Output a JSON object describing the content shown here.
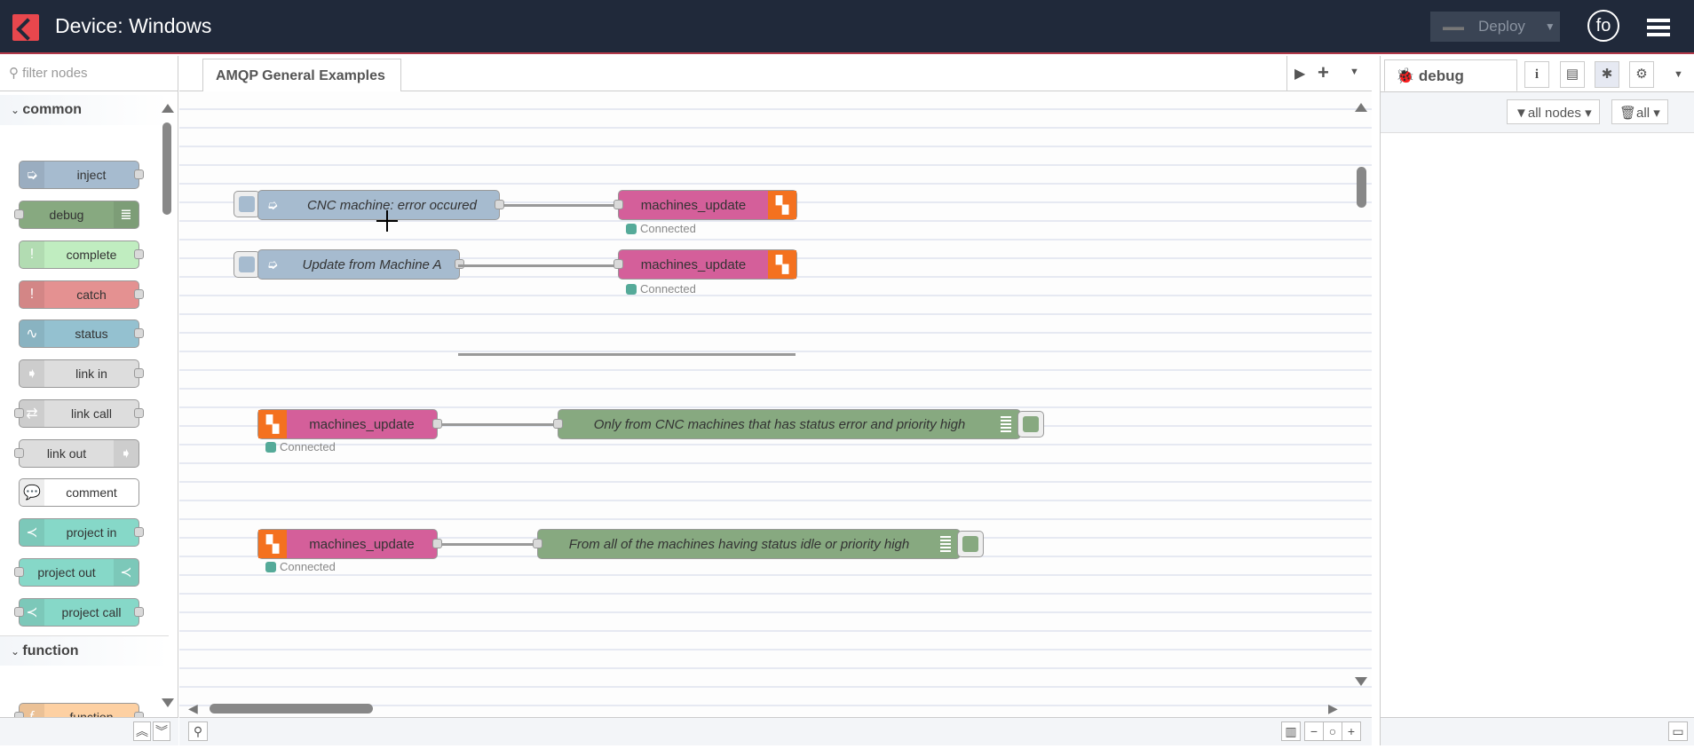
{
  "header": {
    "title": "Device: Windows",
    "deploy_label": "Deploy",
    "user_initials": "fo"
  },
  "palette": {
    "filter_placeholder": "filter nodes",
    "categories": [
      {
        "label": "common"
      },
      {
        "label": "function"
      }
    ],
    "nodes": [
      {
        "label": "inject",
        "color": "#a6bbcf",
        "icon": "arrow-right-icon"
      },
      {
        "label": "debug",
        "color": "#87a980",
        "icon": "list-icon"
      },
      {
        "label": "complete",
        "color": "#c0edc0",
        "icon": "exclamation-icon"
      },
      {
        "label": "catch",
        "color": "#e49191",
        "icon": "exclamation-icon"
      },
      {
        "label": "status",
        "color": "#94c1d0",
        "icon": "pulse-icon"
      },
      {
        "label": "link in",
        "color": "#dddddd",
        "icon": "link-in-icon"
      },
      {
        "label": "link call",
        "color": "#dddddd",
        "icon": "link-call-icon"
      },
      {
        "label": "link out",
        "color": "#dddddd",
        "icon": "link-out-icon"
      },
      {
        "label": "comment",
        "color": "#ffffff",
        "icon": "comment-icon"
      },
      {
        "label": "project in",
        "color": "#86d8c8",
        "icon": "project-icon"
      },
      {
        "label": "project out",
        "color": "#86d8c8",
        "icon": "project-icon"
      },
      {
        "label": "project call",
        "color": "#86d8c8",
        "icon": "project-icon"
      },
      {
        "label": "function",
        "color": "#fdd0a2",
        "icon": "function-icon"
      }
    ]
  },
  "workspace": {
    "tab_label": "AMQP General Examples",
    "flows": [
      {
        "inject": "CNC machine: error occured",
        "amqp_out": "machines_update",
        "status": "Connected"
      },
      {
        "inject": "Update from Machine A",
        "amqp_out": "machines_update",
        "status": "Connected"
      },
      {
        "amqp_in": "machines_update",
        "status": "Connected",
        "debug": "Only from CNC machines that has status error and priority high"
      },
      {
        "amqp_in": "machines_update",
        "status": "Connected",
        "debug": "From all of the machines having status idle or priority high"
      }
    ]
  },
  "sidebar": {
    "tab_label": "debug",
    "filter_label": "all nodes",
    "clear_label": "all"
  },
  "colors": {
    "header": "#20293a",
    "amqp": "#d45f9a",
    "amqp_icon": "#f4711f",
    "inject": "#a6bbcf",
    "debug": "#87a980",
    "status_ok": "#55aa99"
  }
}
